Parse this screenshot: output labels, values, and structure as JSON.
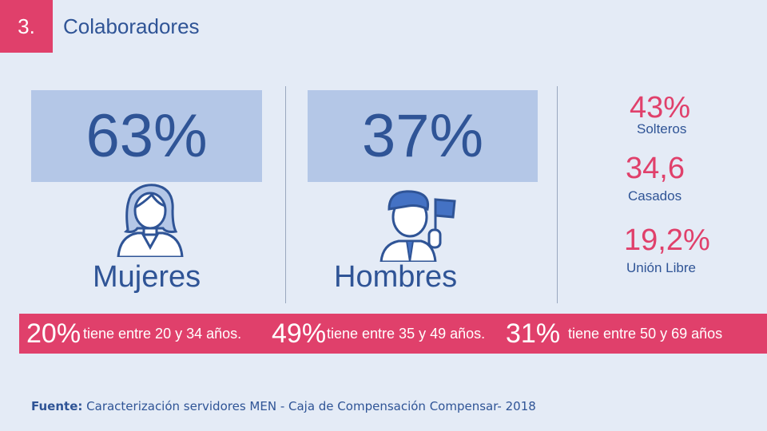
{
  "header": {
    "number": "3.",
    "title": "Colaboradores"
  },
  "gender": {
    "women": {
      "percent": "63%",
      "label": "Mujeres"
    },
    "men": {
      "percent": "37%",
      "label": "Hombres"
    }
  },
  "civil_status": [
    {
      "percent": "43%",
      "label": "Solteros"
    },
    {
      "percent": "34,6",
      "label": "Casados"
    },
    {
      "percent": "19,2%",
      "label": "Unión Libre"
    }
  ],
  "age_ranges": [
    {
      "percent": "20%",
      "text": "tiene entre 20 y 34 años."
    },
    {
      "percent": "49%",
      "text": "tiene entre 35 y 49 años."
    },
    {
      "percent": "31%",
      "text": "tiene entre 50 y 69 años"
    }
  ],
  "source": {
    "label": "Fuente:",
    "text": "Caracterización servidores MEN - Caja de Compensación Compensar- 2018"
  },
  "colors": {
    "accent": "#e0406b",
    "primary": "#2f5496",
    "box": "#b4c7e7",
    "background": "#e4ebf6"
  }
}
